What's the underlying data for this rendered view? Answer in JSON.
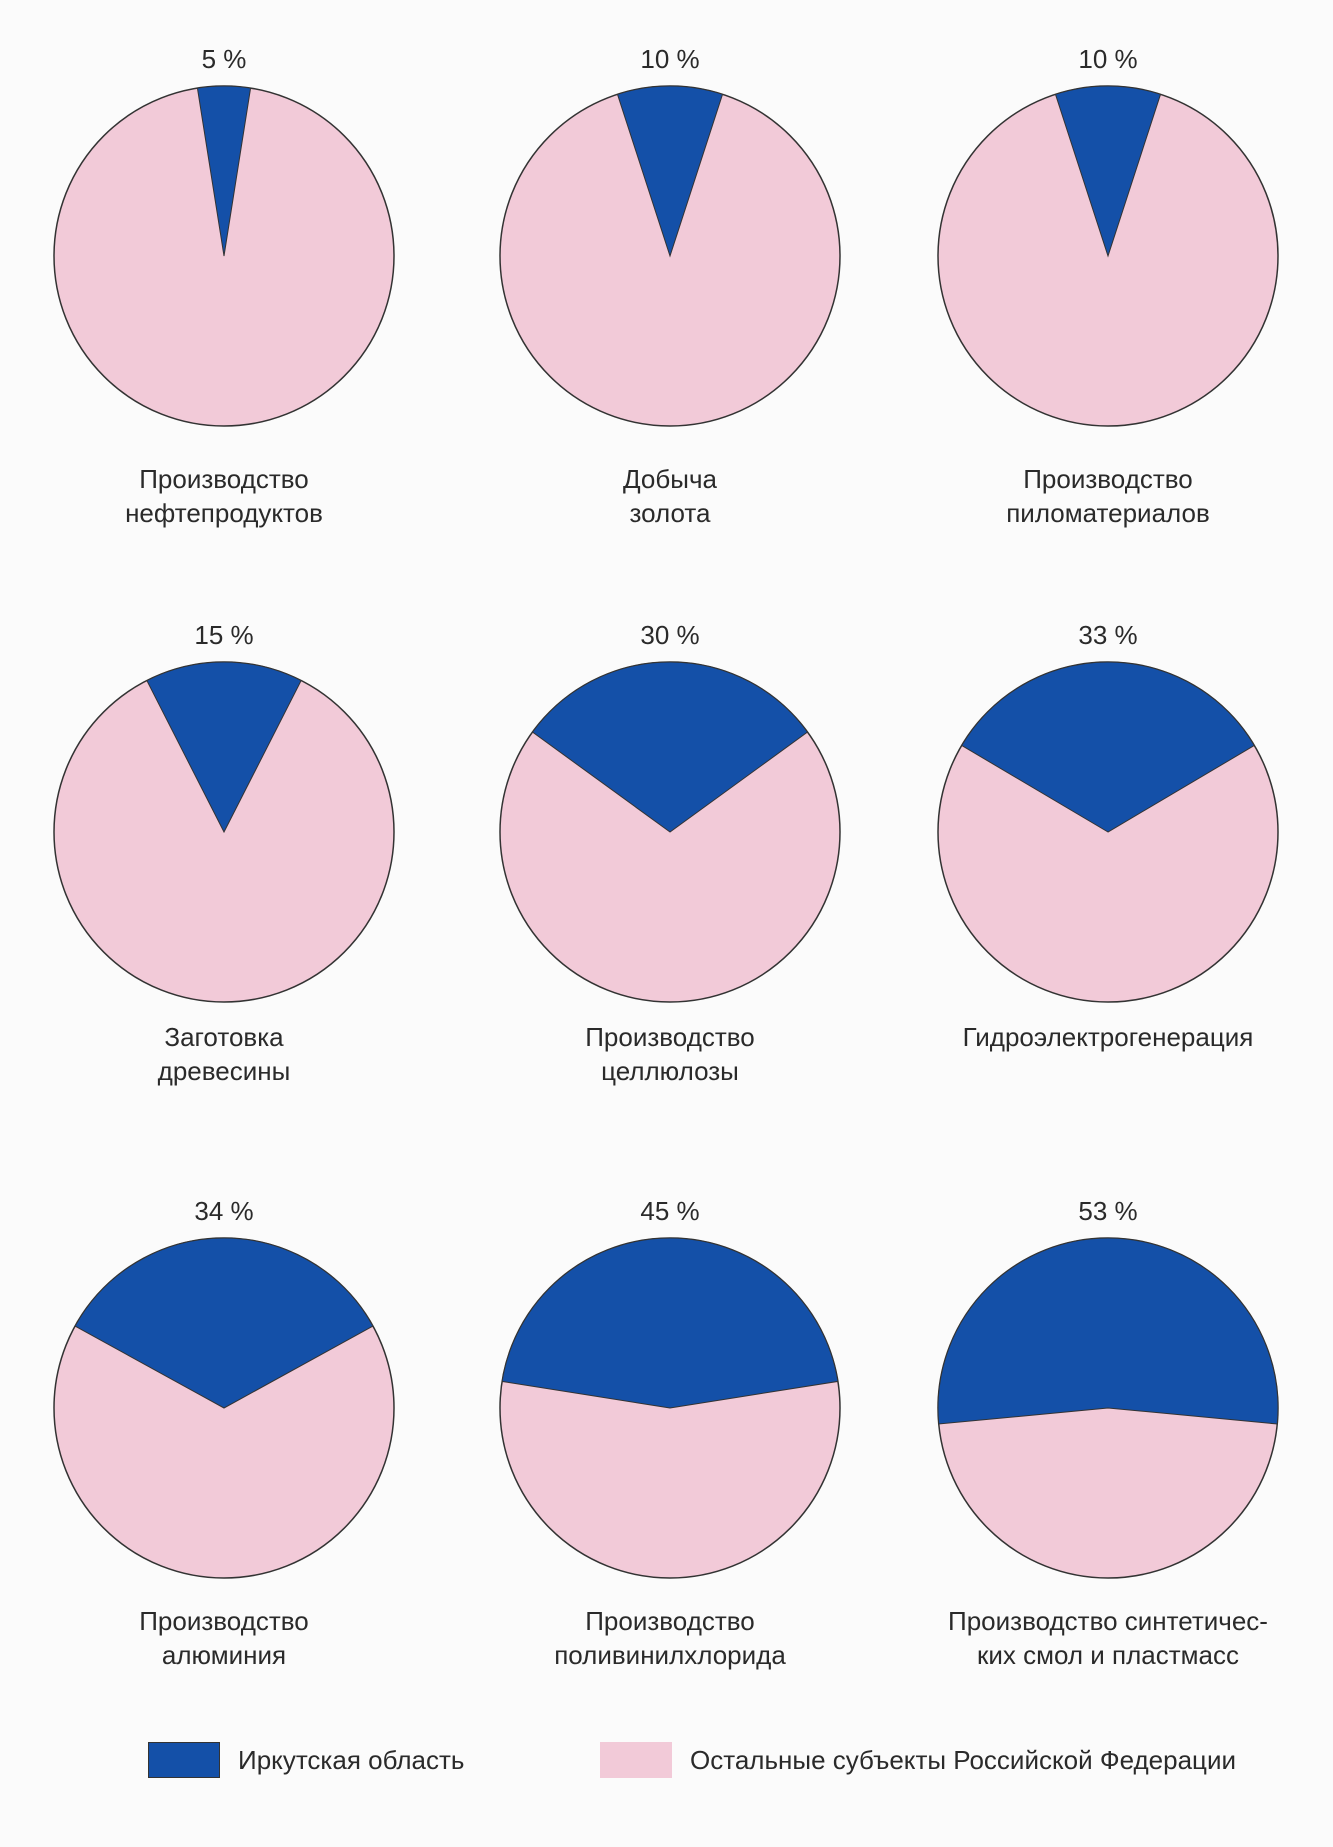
{
  "colors": {
    "irkutsk": "#1450a8",
    "rest": "#f2cad8",
    "outline": "#333333"
  },
  "chart_data": [
    {
      "type": "pie",
      "title": "5 %",
      "caption": "Производство\nнефтепродуктов",
      "values": [
        5,
        95
      ],
      "labels": [
        "Иркутская область",
        "Остальные субъекты Российской Федерации"
      ]
    },
    {
      "type": "pie",
      "title": "10 %",
      "caption": "Добыча\nзолота",
      "values": [
        10,
        90
      ],
      "labels": [
        "Иркутская область",
        "Остальные субъекты Российской Федерации"
      ]
    },
    {
      "type": "pie",
      "title": "10 %",
      "caption": "Производство\nпиломатериалов",
      "values": [
        10,
        90
      ],
      "labels": [
        "Иркутская область",
        "Остальные субъекты Российской Федерации"
      ]
    },
    {
      "type": "pie",
      "title": "15 %",
      "caption": "Заготовка\nдревесины",
      "values": [
        15,
        85
      ],
      "labels": [
        "Иркутская область",
        "Остальные субъекты Российской Федерации"
      ]
    },
    {
      "type": "pie",
      "title": "30 %",
      "caption": "Производство\nцеллюлозы",
      "values": [
        30,
        70
      ],
      "labels": [
        "Иркутская область",
        "Остальные субъекты Российской Федерации"
      ]
    },
    {
      "type": "pie",
      "title": "33 %",
      "caption": "Гидроэлектрогенерация",
      "values": [
        33,
        67
      ],
      "labels": [
        "Иркутская область",
        "Остальные субъекты Российской Федерации"
      ]
    },
    {
      "type": "pie",
      "title": "34 %",
      "caption": "Производство\nалюминия",
      "values": [
        34,
        66
      ],
      "labels": [
        "Иркутская область",
        "Остальные субъекты Российской Федерации"
      ]
    },
    {
      "type": "pie",
      "title": "45 %",
      "caption": "Производство\nполивинилхлорида",
      "values": [
        45,
        55
      ],
      "labels": [
        "Иркутская область",
        "Остальные субъекты Российской Федерации"
      ]
    },
    {
      "type": "pie",
      "title": "53 %",
      "caption": "Производство синтетичес-\nких смол и пластмасс",
      "values": [
        53,
        47
      ],
      "labels": [
        "Иркутская область",
        "Остальные субъекты Российской Федерации"
      ]
    }
  ],
  "legend": {
    "items": [
      {
        "label": "Иркутская область",
        "color": "#1450a8"
      },
      {
        "label": "Остальные субъекты Российской Федерации",
        "color": "#f2cad8"
      }
    ]
  }
}
